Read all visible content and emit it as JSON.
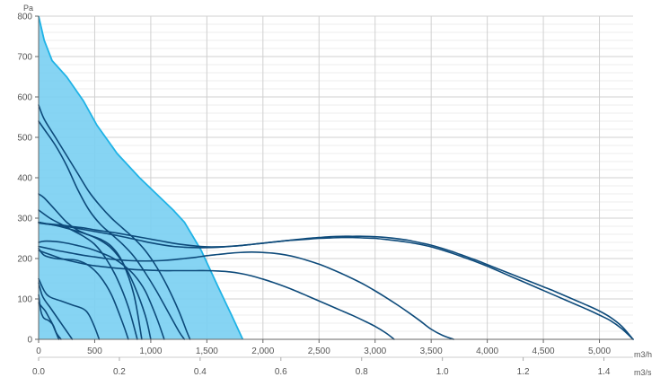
{
  "chart_data": {
    "type": "line",
    "title": "",
    "y_axis": {
      "unit": "Pa",
      "range": [
        0,
        800
      ],
      "ticks": [
        "0",
        "100",
        "200",
        "300",
        "400",
        "500",
        "600",
        "700",
        "800"
      ]
    },
    "x_axis_primary": {
      "unit": "m3/h",
      "range": [
        0,
        5300
      ],
      "ticks": [
        "0",
        "500",
        "1,000",
        "1,500",
        "2,000",
        "2,500",
        "3,000",
        "3,500",
        "4,000",
        "4,500",
        "5,000"
      ]
    },
    "x_axis_secondary": {
      "unit": "m3/s",
      "ticks": [
        "0.0",
        "0.2",
        "0.4",
        "0.6",
        "0.8",
        "1.0",
        "1.2",
        "1.4"
      ]
    },
    "grid": true,
    "colors": {
      "envelope_fill": "#79cff2",
      "envelope_stroke": "#1fb3e6",
      "curve": "#0d4a7a",
      "axis": "#666666",
      "grid_major": "#d0d0d0",
      "grid_minor": "#ececec"
    },
    "envelope": {
      "x": [
        0,
        50,
        120,
        250,
        400,
        520,
        700,
        900,
        1050,
        1200,
        1300,
        1450,
        1600,
        1720,
        1820,
        1820,
        0
      ],
      "y": [
        800,
        740,
        690,
        650,
        590,
        530,
        460,
        400,
        360,
        320,
        290,
        220,
        130,
        60,
        0,
        0,
        0
      ]
    },
    "series": [
      {
        "x": [
          0,
          80,
          200,
          300,
          400,
          500,
          600,
          700,
          800,
          900,
          1000,
          1100,
          1200,
          1300,
          1400,
          1500,
          1600,
          1700,
          1800,
          1900,
          2000,
          2100,
          2200,
          2300,
          2400,
          2500,
          2600,
          2700,
          2800,
          2900,
          3000,
          3100,
          3200,
          3300,
          3400,
          3500,
          3600,
          3700,
          3800,
          3900,
          4000,
          4100,
          4200,
          4300,
          4400,
          4500,
          4600,
          4700,
          4800,
          4900,
          5000,
          5100,
          5200,
          5300
        ],
        "y": [
          290,
          286,
          283,
          279,
          276,
          271,
          267,
          263,
          258,
          253,
          248,
          243,
          238,
          234,
          231,
          229,
          229,
          230,
          232,
          235,
          238,
          241,
          244,
          247,
          250,
          252,
          254,
          255,
          255,
          255,
          254,
          252,
          249,
          245,
          239,
          233,
          225,
          216,
          206,
          196,
          185,
          174,
          163,
          152,
          141,
          130,
          119,
          107,
          95,
          83,
          70,
          54,
          32,
          0
        ]
      },
      {
        "x": [
          0,
          80,
          200,
          300,
          400,
          500,
          600,
          700,
          800,
          900,
          1000,
          1100,
          1200,
          1300,
          1400,
          1500,
          1600,
          1700,
          1800,
          1900,
          2000,
          2100,
          2200,
          2300,
          2400,
          2500,
          2600,
          2700,
          2800,
          2900,
          3000,
          3100,
          3200,
          3300,
          3400,
          3500,
          3600,
          3700,
          3800,
          3900,
          4000,
          4100,
          4200,
          4300,
          4400,
          4500,
          4600,
          4700,
          4800,
          4900,
          5000,
          5100,
          5200,
          5300
        ],
        "y": [
          288,
          285,
          281,
          277,
          272,
          267,
          262,
          257,
          251,
          245,
          239,
          234,
          230,
          228,
          227,
          227,
          228,
          230,
          232,
          235,
          238,
          241,
          244,
          246,
          248,
          250,
          251,
          252,
          252,
          251,
          250,
          247,
          244,
          240,
          235,
          229,
          221,
          212,
          202,
          192,
          181,
          169,
          157,
          145,
          133,
          121,
          109,
          97,
          85,
          73,
          60,
          46,
          26,
          0
        ]
      },
      {
        "x": [
          0,
          100,
          200,
          300,
          400,
          500,
          600,
          700,
          800,
          900,
          1000,
          1100,
          1200,
          1300,
          1400,
          1500,
          1600,
          1700,
          1800,
          1900,
          2000,
          2100,
          2200,
          2300,
          2400,
          2500,
          2600,
          2700,
          2800,
          2900,
          3000,
          3100,
          3200,
          3300,
          3400,
          3500,
          3600,
          3700
        ],
        "y": [
          230,
          224,
          218,
          213,
          208,
          204,
          200,
          197,
          195,
          194,
          194,
          195,
          197,
          200,
          203,
          207,
          210,
          213,
          215,
          216,
          215,
          213,
          209,
          203,
          195,
          186,
          175,
          163,
          150,
          136,
          120,
          103,
          85,
          66,
          46,
          25,
          10,
          0
        ]
      },
      {
        "x": [
          0,
          100,
          200,
          300,
          400,
          500,
          600,
          700,
          800,
          900,
          1000,
          1100,
          1200,
          1300,
          1400,
          1500,
          1600,
          1700,
          1800,
          1900,
          2000,
          2100,
          2200,
          2300,
          2400,
          2500,
          2600,
          2700,
          2800,
          2900,
          3000,
          3100,
          3170
        ],
        "y": [
          220,
          210,
          200,
          193,
          187,
          182,
          179,
          176,
          174,
          172,
          171,
          170,
          170,
          170,
          170,
          170,
          169,
          167,
          163,
          157,
          149,
          140,
          130,
          119,
          107,
          95,
          83,
          71,
          59,
          46,
          32,
          15,
          0
        ]
      },
      {
        "x": [
          0,
          50,
          150,
          250,
          350,
          450,
          550,
          650,
          750,
          850,
          950,
          1050,
          1120
        ],
        "y": [
          240,
          243,
          242,
          238,
          232,
          225,
          215,
          203,
          185,
          160,
          120,
          55,
          0
        ]
      },
      {
        "x": [
          0,
          50,
          150,
          250,
          350,
          450,
          550,
          650,
          750,
          850,
          950,
          1000
        ],
        "y": [
          290,
          287,
          282,
          275,
          267,
          258,
          245,
          225,
          190,
          135,
          60,
          0
        ]
      },
      {
        "x": [
          0,
          50,
          150,
          250,
          350,
          450,
          550,
          650,
          750,
          850,
          920
        ],
        "y": [
          360,
          350,
          320,
          290,
          270,
          258,
          248,
          230,
          190,
          110,
          0
        ]
      },
      {
        "x": [
          0,
          50,
          150,
          250,
          350,
          450,
          550,
          650,
          750,
          850,
          950,
          1050,
          1150,
          1250,
          1320,
          1350
        ],
        "y": [
          580,
          545,
          500,
          455,
          410,
          365,
          330,
          300,
          275,
          250,
          220,
          180,
          130,
          70,
          20,
          0
        ]
      },
      {
        "x": [
          0,
          50,
          150,
          250,
          350,
          450,
          550,
          650,
          750,
          850,
          950,
          1050,
          1150,
          1250,
          1300
        ],
        "y": [
          540,
          520,
          480,
          430,
          370,
          320,
          285,
          260,
          235,
          205,
          165,
          120,
          70,
          20,
          0
        ]
      },
      {
        "x": [
          0,
          100,
          200,
          300,
          400,
          500,
          600,
          700,
          800,
          880
        ],
        "y": [
          320,
          300,
          285,
          270,
          255,
          235,
          200,
          150,
          80,
          0
        ]
      },
      {
        "x": [
          0,
          50,
          150,
          250,
          350,
          450,
          550,
          650,
          750,
          800
        ],
        "y": [
          225,
          208,
          200,
          198,
          195,
          182,
          155,
          110,
          40,
          0
        ]
      },
      {
        "x": [
          0,
          50,
          100,
          200,
          300,
          400,
          450,
          500,
          540
        ],
        "y": [
          150,
          120,
          105,
          95,
          85,
          75,
          60,
          30,
          0
        ]
      },
      {
        "x": [
          0,
          30,
          60,
          100,
          150,
          200,
          250,
          300
        ],
        "y": [
          140,
          110,
          95,
          80,
          60,
          40,
          20,
          0
        ]
      },
      {
        "x": [
          0,
          20,
          40,
          60,
          80,
          100,
          130,
          160,
          200
        ],
        "y": [
          110,
          70,
          55,
          50,
          48,
          44,
          35,
          15,
          0
        ]
      },
      {
        "x": [
          0,
          30,
          60,
          90,
          120,
          150,
          180
        ],
        "y": [
          90,
          80,
          70,
          55,
          40,
          20,
          0
        ]
      }
    ]
  }
}
